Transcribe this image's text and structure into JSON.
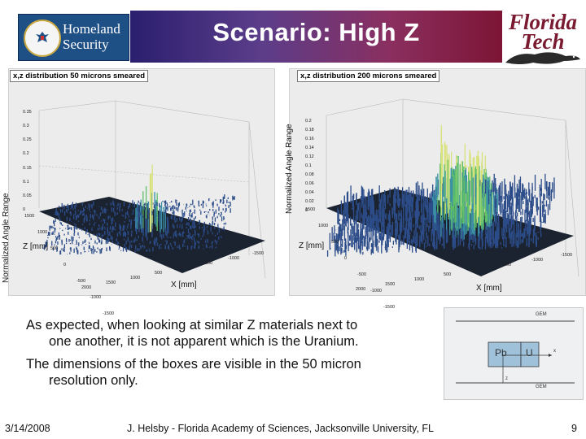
{
  "header": {
    "title": "Scenario: High Z",
    "left_logo": {
      "text_line1": "Homeland",
      "text_line2": "Security"
    },
    "right_logo": {
      "text_line1": "Florida",
      "text_line2": "Tech"
    }
  },
  "plots": [
    {
      "title": "x,z distribution 50 microns smeared",
      "y_axis_label": "Normalized Angle Range",
      "x_axis_label": "X [mm]",
      "z_axis_label": "Z [mm]",
      "y_ticks": [
        "0.35",
        "0.3",
        "0.25",
        "0.2",
        "0.15",
        "0.1",
        "0.05",
        "0"
      ],
      "z_ticks": [
        "1500",
        "1000",
        "500",
        "0",
        "-500",
        "-1000",
        "-1500"
      ],
      "x_ticks": [
        "2000",
        "1500",
        "1000",
        "500",
        "0",
        "-500",
        "-1000",
        "-1500"
      ]
    },
    {
      "title": "x,z distribution 200 microns smeared",
      "y_axis_label": "Normalized Angle Range",
      "x_axis_label": "X [mm]",
      "z_axis_label": "Z [mm]",
      "y_ticks": [
        "0.2",
        "0.18",
        "0.16",
        "0.14",
        "0.12",
        "0.1",
        "0.08",
        "0.06",
        "0.04",
        "0.02",
        "0"
      ],
      "z_ticks": [
        "1500",
        "1000",
        "500",
        "0",
        "-500",
        "-1000",
        "-1500"
      ],
      "x_ticks": [
        "2000",
        "1500",
        "1000",
        "500",
        "0",
        "-500",
        "-1000",
        "-1500"
      ]
    }
  ],
  "body": {
    "p1_line1": "As expected, when looking at similar Z materials next to",
    "p1_line2": "one another, it is not apparent which is the Uranium.",
    "p2_line1": "The dimensions of the boxes are visible in the 50 micron",
    "p2_line2": "resolution only."
  },
  "diagram": {
    "top_label": "GEM",
    "bottom_label": "GEM",
    "box_left": "Pb",
    "box_right": "U",
    "axis_x": "x",
    "axis_z": "z"
  },
  "footer": {
    "date": "3/14/2008",
    "citation": "J. Helsby - Florida Academy of Sciences, Jacksonville University, FL",
    "page": "9"
  },
  "colors": {
    "band_start": "#2a1f6e",
    "band_end": "#7d1535",
    "dhs_blue": "#1e4f85",
    "ft_maroon": "#7a1a30"
  }
}
